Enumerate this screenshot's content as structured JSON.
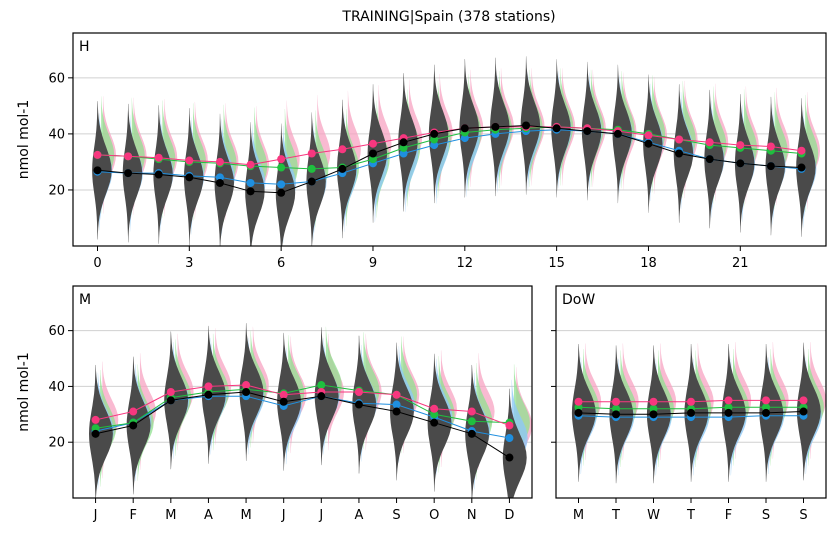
{
  "figure": {
    "title": "TRAINING|Spain (378 stations)"
  },
  "colors": {
    "black": "#000000",
    "pink": "#f7377f",
    "green": "#1fbf3f",
    "blue": "#1f8fdf",
    "violin_black": "#4a4a4a",
    "violin_pink": "#f7a3c2",
    "violin_green": "#8fe08f",
    "violin_blue": "#8fc8f5"
  },
  "chart_data": [
    {
      "type": "violin",
      "panel_label": "H",
      "ylabel": "nmol mol-1",
      "ylim": [
        0,
        76
      ],
      "yticks": [
        20,
        40,
        60
      ],
      "xticks": [
        "0",
        "3",
        "6",
        "9",
        "12",
        "15",
        "18",
        "21"
      ],
      "x": [
        0,
        1,
        2,
        3,
        4,
        5,
        6,
        7,
        8,
        9,
        10,
        11,
        12,
        13,
        14,
        15,
        16,
        17,
        18,
        19,
        20,
        21,
        22,
        23
      ],
      "grid": true,
      "series": [
        {
          "color_key": "black",
          "values": [
            27,
            26,
            25.5,
            24.5,
            22.5,
            19.5,
            19,
            23,
            27.5,
            33,
            37,
            40,
            42,
            42.5,
            43,
            42,
            41,
            40,
            36.5,
            33,
            31,
            29.5,
            28.5,
            28
          ]
        },
        {
          "color_key": "pink",
          "values": [
            32.5,
            32,
            31.5,
            30.5,
            30,
            29,
            31,
            33,
            34.5,
            36.5,
            38.5,
            40.5,
            42,
            42.5,
            42.5,
            42.5,
            42,
            41,
            39.5,
            38,
            37,
            36,
            35.5,
            34
          ]
        },
        {
          "color_key": "green",
          "values": [
            32.5,
            32,
            31,
            30,
            29.5,
            28.5,
            28,
            27.5,
            28,
            31,
            35,
            38,
            40.5,
            41.5,
            42,
            42.5,
            42,
            41.5,
            40,
            38,
            36,
            35,
            34,
            33
          ]
        },
        {
          "color_key": "blue",
          "values": [
            26.5,
            26,
            26,
            25,
            24.5,
            22.5,
            22,
            23,
            26,
            29.5,
            33,
            36,
            38.5,
            40,
            41,
            41.5,
            41,
            40,
            37,
            34,
            31,
            29.5,
            28.5,
            27.5
          ]
        }
      ]
    },
    {
      "type": "violin",
      "panel_label": "M",
      "ylabel": "nmol mol-1",
      "ylim": [
        0,
        76
      ],
      "yticks": [
        20,
        40,
        60
      ],
      "xticks": [
        "J",
        "F",
        "M",
        "A",
        "M",
        "J",
        "J",
        "A",
        "S",
        "O",
        "N",
        "D"
      ],
      "x": [
        0,
        1,
        2,
        3,
        4,
        5,
        6,
        7,
        8,
        9,
        10,
        11
      ],
      "grid": true,
      "series": [
        {
          "color_key": "black",
          "values": [
            23,
            26,
            35,
            37,
            38,
            34.5,
            36.5,
            33.5,
            31,
            27,
            23,
            14.5
          ]
        },
        {
          "color_key": "pink",
          "values": [
            28,
            31,
            38,
            40,
            40.5,
            37,
            38,
            38,
            37,
            32,
            31,
            26
          ]
        },
        {
          "color_key": "green",
          "values": [
            25,
            27,
            36,
            38,
            39,
            37.5,
            40.5,
            38.5,
            37,
            30,
            27.5,
            27
          ]
        },
        {
          "color_key": "blue",
          "values": [
            24,
            27,
            35,
            36.5,
            36.5,
            33,
            36.5,
            34,
            33.5,
            29,
            24,
            21.5
          ]
        }
      ]
    },
    {
      "type": "violin",
      "panel_label": "DoW",
      "ylim": [
        0,
        76
      ],
      "yticks": [
        20,
        40,
        60
      ],
      "xticks": [
        "M",
        "T",
        "W",
        "T",
        "F",
        "S",
        "S"
      ],
      "x": [
        0,
        1,
        2,
        3,
        4,
        5,
        6
      ],
      "grid": true,
      "series": [
        {
          "color_key": "black",
          "values": [
            30.5,
            30,
            30,
            30.5,
            30.5,
            30.5,
            31
          ]
        },
        {
          "color_key": "pink",
          "values": [
            34.5,
            34.5,
            34.5,
            34.5,
            35,
            35,
            35
          ]
        },
        {
          "color_key": "green",
          "values": [
            32.5,
            32,
            32,
            32,
            32.5,
            32.5,
            32.5
          ]
        },
        {
          "color_key": "blue",
          "values": [
            29.5,
            29,
            29,
            29,
            29,
            29.5,
            29.5
          ]
        }
      ]
    }
  ]
}
